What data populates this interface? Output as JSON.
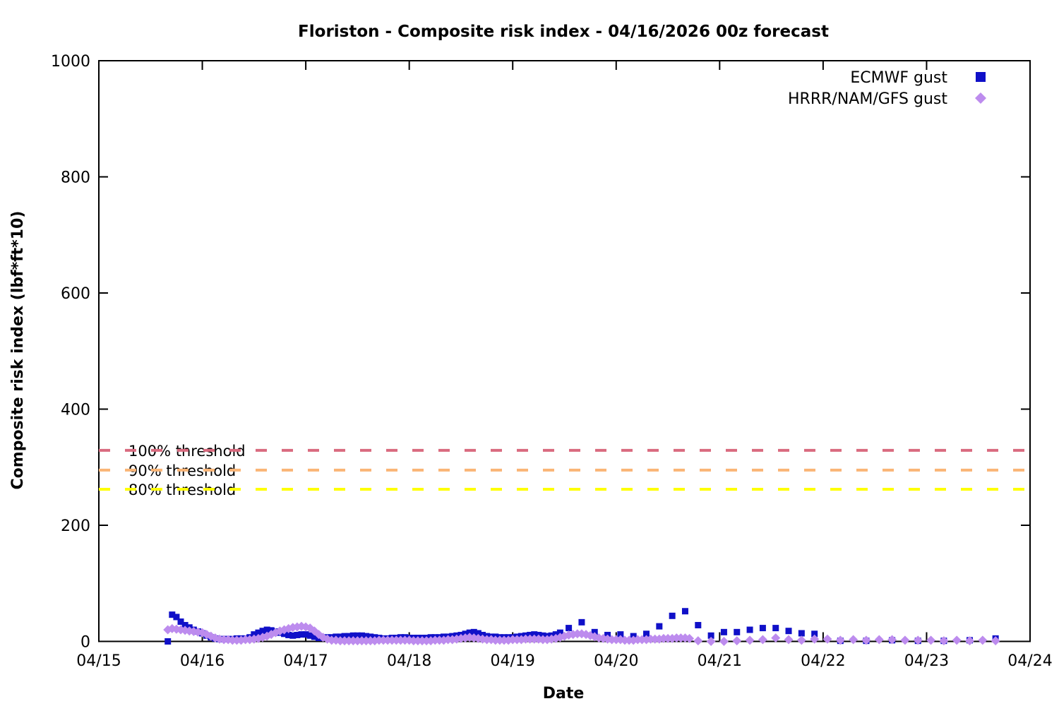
{
  "title": "Floriston - Composite risk index - 04/16/2026 00z forecast",
  "chart_data": {
    "type": "scatter",
    "title": "Floriston - Composite risk index - 04/16/2026 00z forecast",
    "xlabel": "Date",
    "ylabel": "Composite risk index (lbf*ft*10)",
    "x_unit": "hours since 04/15 00z",
    "xlim_hours": [
      0,
      216
    ],
    "ylim": [
      0,
      1000
    ],
    "xtick_labels": [
      "04/15",
      "04/16",
      "04/17",
      "04/18",
      "04/19",
      "04/20",
      "04/21",
      "04/22",
      "04/23",
      "04/24"
    ],
    "xtick_hours": [
      0,
      24,
      48,
      72,
      96,
      120,
      144,
      168,
      192,
      216
    ],
    "ytick_values": [
      0,
      200,
      400,
      600,
      800,
      1000
    ],
    "grid": false,
    "legend_position": "top-right",
    "background_color": "#ffffff",
    "border_color": "#000000",
    "thresholds": [
      {
        "label": "100% threshold",
        "value": 329,
        "color": "#d96a7f"
      },
      {
        "label": "90% threshold",
        "value": 295,
        "color": "#fab576"
      },
      {
        "label": "80% threshold",
        "value": 262,
        "color": "#ffff00"
      }
    ],
    "series": [
      {
        "name": "ECMWF gust",
        "marker": "square",
        "color": "#1010c8",
        "points": [
          [
            16,
            0
          ],
          [
            17,
            46
          ],
          [
            18,
            42
          ],
          [
            19,
            34
          ],
          [
            20,
            28
          ],
          [
            21,
            24
          ],
          [
            22,
            20
          ],
          [
            23,
            17
          ],
          [
            24,
            14
          ],
          [
            25,
            10
          ],
          [
            26,
            7
          ],
          [
            27,
            5
          ],
          [
            28,
            4
          ],
          [
            29,
            4
          ],
          [
            30,
            4
          ],
          [
            31,
            4
          ],
          [
            32,
            5
          ],
          [
            33,
            5
          ],
          [
            34,
            5
          ],
          [
            35,
            7
          ],
          [
            36,
            12
          ],
          [
            37,
            15
          ],
          [
            38,
            18
          ],
          [
            39,
            20
          ],
          [
            40,
            19
          ],
          [
            41,
            17
          ],
          [
            42,
            15
          ],
          [
            43,
            13
          ],
          [
            44,
            11
          ],
          [
            45,
            10
          ],
          [
            46,
            11
          ],
          [
            47,
            12
          ],
          [
            48,
            12
          ],
          [
            49,
            10
          ],
          [
            50,
            8
          ],
          [
            51,
            6
          ],
          [
            52,
            6
          ],
          [
            53,
            7
          ],
          [
            54,
            7
          ],
          [
            55,
            8
          ],
          [
            56,
            8
          ],
          [
            57,
            9
          ],
          [
            58,
            9
          ],
          [
            59,
            10
          ],
          [
            60,
            10
          ],
          [
            61,
            10
          ],
          [
            62,
            9
          ],
          [
            63,
            8
          ],
          [
            64,
            7
          ],
          [
            65,
            6
          ],
          [
            66,
            5
          ],
          [
            67,
            5
          ],
          [
            68,
            6
          ],
          [
            69,
            6
          ],
          [
            70,
            7
          ],
          [
            71,
            7
          ],
          [
            72,
            6
          ],
          [
            73,
            6
          ],
          [
            74,
            6
          ],
          [
            75,
            6
          ],
          [
            76,
            6
          ],
          [
            77,
            7
          ],
          [
            78,
            7
          ],
          [
            79,
            7
          ],
          [
            80,
            8
          ],
          [
            81,
            8
          ],
          [
            82,
            9
          ],
          [
            83,
            10
          ],
          [
            84,
            11
          ],
          [
            85,
            13
          ],
          [
            86,
            15
          ],
          [
            87,
            16
          ],
          [
            88,
            14
          ],
          [
            89,
            11
          ],
          [
            90,
            9
          ],
          [
            91,
            8
          ],
          [
            92,
            8
          ],
          [
            93,
            7
          ],
          [
            94,
            7
          ],
          [
            95,
            7
          ],
          [
            96,
            7
          ],
          [
            97,
            8
          ],
          [
            98,
            9
          ],
          [
            99,
            10
          ],
          [
            100,
            11
          ],
          [
            101,
            12
          ],
          [
            102,
            11
          ],
          [
            103,
            10
          ],
          [
            104,
            9
          ],
          [
            105,
            10
          ],
          [
            106,
            12
          ],
          [
            107,
            15
          ],
          [
            109,
            23
          ],
          [
            112,
            33
          ],
          [
            115,
            16
          ],
          [
            118,
            11
          ],
          [
            121,
            12
          ],
          [
            124,
            9
          ],
          [
            127,
            13
          ],
          [
            130,
            26
          ],
          [
            133,
            44
          ],
          [
            136,
            52
          ],
          [
            139,
            28
          ],
          [
            142,
            10
          ],
          [
            145,
            16
          ],
          [
            148,
            16
          ],
          [
            151,
            20
          ],
          [
            154,
            23
          ],
          [
            157,
            23
          ],
          [
            160,
            18
          ],
          [
            163,
            14
          ],
          [
            166,
            13
          ],
          [
            172,
            1
          ],
          [
            178,
            1
          ],
          [
            184,
            2
          ],
          [
            190,
            1
          ],
          [
            196,
            1
          ],
          [
            202,
            2
          ],
          [
            208,
            5
          ]
        ]
      },
      {
        "name": "HRRR/NAM/GFS gust",
        "marker": "diamond",
        "color": "#bd8cee",
        "points": [
          [
            16,
            20
          ],
          [
            17,
            22
          ],
          [
            18,
            21
          ],
          [
            19,
            20
          ],
          [
            20,
            19
          ],
          [
            21,
            18
          ],
          [
            22,
            17
          ],
          [
            23,
            16
          ],
          [
            24,
            15
          ],
          [
            25,
            12
          ],
          [
            26,
            9
          ],
          [
            27,
            6
          ],
          [
            28,
            4
          ],
          [
            29,
            3
          ],
          [
            30,
            3
          ],
          [
            31,
            2
          ],
          [
            32,
            2
          ],
          [
            33,
            2
          ],
          [
            34,
            3
          ],
          [
            35,
            3
          ],
          [
            36,
            4
          ],
          [
            37,
            5
          ],
          [
            38,
            7
          ],
          [
            39,
            9
          ],
          [
            40,
            12
          ],
          [
            41,
            15
          ],
          [
            42,
            18
          ],
          [
            43,
            20
          ],
          [
            44,
            22
          ],
          [
            45,
            24
          ],
          [
            46,
            25
          ],
          [
            47,
            26
          ],
          [
            48,
            25
          ],
          [
            49,
            23
          ],
          [
            50,
            18
          ],
          [
            51,
            12
          ],
          [
            52,
            7
          ],
          [
            53,
            4
          ],
          [
            54,
            2
          ],
          [
            55,
            2
          ],
          [
            56,
            1
          ],
          [
            57,
            1
          ],
          [
            58,
            1
          ],
          [
            59,
            1
          ],
          [
            60,
            1
          ],
          [
            61,
            1
          ],
          [
            62,
            1
          ],
          [
            63,
            1
          ],
          [
            64,
            1
          ],
          [
            65,
            2
          ],
          [
            66,
            2
          ],
          [
            67,
            2
          ],
          [
            68,
            2
          ],
          [
            69,
            2
          ],
          [
            70,
            2
          ],
          [
            71,
            2
          ],
          [
            72,
            2
          ],
          [
            73,
            1
          ],
          [
            74,
            1
          ],
          [
            75,
            1
          ],
          [
            76,
            1
          ],
          [
            77,
            1
          ],
          [
            78,
            2
          ],
          [
            79,
            2
          ],
          [
            80,
            2
          ],
          [
            81,
            3
          ],
          [
            82,
            3
          ],
          [
            83,
            4
          ],
          [
            84,
            5
          ],
          [
            85,
            6
          ],
          [
            86,
            7
          ],
          [
            87,
            6
          ],
          [
            88,
            5
          ],
          [
            89,
            4
          ],
          [
            90,
            3
          ],
          [
            91,
            3
          ],
          [
            92,
            2
          ],
          [
            93,
            2
          ],
          [
            94,
            2
          ],
          [
            95,
            2
          ],
          [
            96,
            3
          ],
          [
            97,
            3
          ],
          [
            98,
            3
          ],
          [
            99,
            4
          ],
          [
            100,
            4
          ],
          [
            101,
            4
          ],
          [
            102,
            4
          ],
          [
            103,
            3
          ],
          [
            104,
            3
          ],
          [
            105,
            4
          ],
          [
            106,
            5
          ],
          [
            107,
            7
          ],
          [
            108,
            9
          ],
          [
            109,
            11
          ],
          [
            110,
            12
          ],
          [
            111,
            13
          ],
          [
            112,
            13
          ],
          [
            113,
            12
          ],
          [
            114,
            10
          ],
          [
            115,
            8
          ],
          [
            116,
            6
          ],
          [
            117,
            5
          ],
          [
            118,
            4
          ],
          [
            119,
            3
          ],
          [
            120,
            3
          ],
          [
            121,
            3
          ],
          [
            122,
            2
          ],
          [
            123,
            2
          ],
          [
            124,
            2
          ],
          [
            125,
            3
          ],
          [
            126,
            3
          ],
          [
            127,
            3
          ],
          [
            128,
            4
          ],
          [
            129,
            4
          ],
          [
            130,
            4
          ],
          [
            131,
            5
          ],
          [
            132,
            5
          ],
          [
            133,
            5
          ],
          [
            134,
            6
          ],
          [
            135,
            6
          ],
          [
            136,
            6
          ],
          [
            137,
            5
          ],
          [
            139,
            1
          ],
          [
            142,
            0
          ],
          [
            145,
            0
          ],
          [
            148,
            1
          ],
          [
            151,
            2
          ],
          [
            154,
            3
          ],
          [
            157,
            6
          ],
          [
            160,
            3
          ],
          [
            163,
            2
          ],
          [
            166,
            4
          ],
          [
            169,
            4
          ],
          [
            172,
            2
          ],
          [
            175,
            3
          ],
          [
            178,
            2
          ],
          [
            181,
            3
          ],
          [
            184,
            3
          ],
          [
            187,
            2
          ],
          [
            190,
            2
          ],
          [
            193,
            2
          ],
          [
            196,
            1
          ],
          [
            199,
            2
          ],
          [
            202,
            1
          ],
          [
            205,
            2
          ],
          [
            208,
            1
          ]
        ]
      }
    ]
  }
}
